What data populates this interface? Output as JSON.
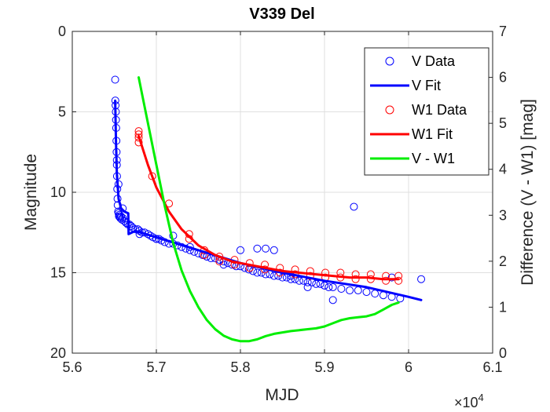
{
  "chart_data": {
    "type": "scatter",
    "title": "V339 Del",
    "xlabel": "MJD",
    "ylabel": "Magnitude",
    "y2label": "Difference (V - W1) [mag]",
    "x_exponent_label": "×10",
    "x_exponent_power": "4",
    "xlim": [
      5.6,
      6.1
    ],
    "ylim": [
      0,
      20
    ],
    "y_reversed": true,
    "y2lim": [
      0,
      7
    ],
    "xticks": [
      "5.6",
      "5.7",
      "5.8",
      "5.9",
      "6",
      "6.1"
    ],
    "yticks": [
      "0",
      "5",
      "10",
      "15",
      "20"
    ],
    "y2ticks": [
      "0",
      "1",
      "2",
      "3",
      "4",
      "5",
      "6",
      "7"
    ],
    "grid": true,
    "legend_position": "top-right",
    "series": [
      {
        "name": "V Data",
        "kind": "markers",
        "axis": "left",
        "color": "#0000ff",
        "x": [
          5.651,
          5.6512,
          5.6515,
          5.6518,
          5.652,
          5.6522,
          5.6525,
          5.6527,
          5.653,
          5.6532,
          5.6535,
          5.6538,
          5.654,
          5.6545,
          5.655,
          5.6555,
          5.656,
          5.6565,
          5.657,
          5.658,
          5.659,
          5.66,
          5.662,
          5.664,
          5.666,
          5.668,
          5.67,
          5.672,
          5.675,
          5.678,
          5.68,
          5.683,
          5.686,
          5.69,
          5.693,
          5.696,
          5.7,
          5.703,
          5.706,
          5.71,
          5.715,
          5.72,
          5.725,
          5.73,
          5.735,
          5.74,
          5.745,
          5.75,
          5.755,
          5.76,
          5.765,
          5.77,
          5.775,
          5.78,
          5.785,
          5.79,
          5.795,
          5.8,
          5.805,
          5.81,
          5.815,
          5.82,
          5.825,
          5.83,
          5.835,
          5.84,
          5.845,
          5.85,
          5.855,
          5.86,
          5.865,
          5.87,
          5.875,
          5.88,
          5.885,
          5.89,
          5.895,
          5.9,
          5.905,
          5.91,
          5.92,
          5.93,
          5.94,
          5.95,
          5.96,
          5.97,
          5.98,
          5.99,
          5.653,
          5.655,
          5.66,
          5.68,
          5.7,
          5.72,
          5.74,
          5.76,
          5.78,
          5.8,
          5.82,
          5.83,
          5.84,
          5.86,
          5.88,
          5.9,
          5.91,
          5.935,
          5.98,
          6.015
        ],
        "y": [
          3.0,
          4.3,
          4.6,
          5.0,
          5.5,
          6.0,
          6.8,
          7.5,
          8.3,
          9.0,
          9.8,
          10.4,
          10.8,
          11.2,
          11.3,
          11.5,
          11.4,
          11.5,
          11.6,
          11.5,
          11.7,
          11.6,
          11.8,
          11.9,
          12.0,
          12.0,
          12.1,
          12.2,
          12.3,
          12.3,
          12.4,
          12.5,
          12.5,
          12.6,
          12.7,
          12.8,
          12.9,
          12.9,
          13.0,
          13.1,
          13.2,
          13.2,
          13.3,
          13.4,
          13.5,
          13.6,
          13.7,
          13.8,
          13.9,
          14.0,
          14.1,
          14.1,
          14.2,
          14.3,
          14.4,
          14.5,
          14.6,
          14.6,
          14.7,
          14.8,
          14.9,
          15.0,
          15.0,
          15.1,
          15.1,
          15.2,
          15.2,
          15.3,
          15.3,
          15.4,
          15.4,
          15.5,
          15.5,
          15.6,
          15.6,
          15.7,
          15.7,
          15.8,
          15.9,
          15.9,
          16.0,
          16.1,
          16.1,
          16.2,
          16.3,
          16.4,
          16.5,
          16.6,
          8.0,
          9.5,
          11.0,
          12.6,
          12.9,
          12.7,
          13.4,
          14.0,
          14.5,
          13.6,
          13.5,
          13.5,
          13.6,
          15.2,
          15.9,
          15.8,
          16.7,
          10.9,
          15.3,
          15.4
        ]
      },
      {
        "name": "V Fit",
        "kind": "line",
        "axis": "left",
        "color": "#0000ff",
        "x": [
          5.651,
          5.652,
          5.653,
          5.655,
          5.658,
          5.662,
          5.6665,
          5.667,
          5.675,
          5.7,
          5.75,
          5.8,
          5.85,
          5.9,
          5.95,
          6.0,
          6.015
        ],
        "y": [
          4.3,
          6.8,
          8.8,
          10.4,
          11.0,
          11.2,
          11.3,
          12.6,
          12.4,
          12.8,
          13.6,
          14.4,
          15.0,
          15.5,
          15.9,
          16.5,
          16.7
        ]
      },
      {
        "name": "W1 Data",
        "kind": "markers",
        "axis": "left",
        "color": "#ff0000",
        "x": [
          5.679,
          5.679,
          5.679,
          5.679,
          5.695,
          5.715,
          5.739,
          5.739,
          5.757,
          5.757,
          5.775,
          5.775,
          5.793,
          5.793,
          5.811,
          5.811,
          5.829,
          5.829,
          5.847,
          5.847,
          5.865,
          5.865,
          5.883,
          5.883,
          5.901,
          5.901,
          5.919,
          5.919,
          5.937,
          5.937,
          5.955,
          5.955,
          5.973,
          5.973,
          5.988,
          5.988
        ],
        "y": [
          6.2,
          6.4,
          6.6,
          6.9,
          9.0,
          10.7,
          12.6,
          12.9,
          13.6,
          13.9,
          14.0,
          14.3,
          14.2,
          14.5,
          14.4,
          14.7,
          14.5,
          14.8,
          14.7,
          15.0,
          14.8,
          15.1,
          14.9,
          15.2,
          15.0,
          15.3,
          15.0,
          15.3,
          15.1,
          15.4,
          15.1,
          15.4,
          15.2,
          15.5,
          15.2,
          15.5
        ]
      },
      {
        "name": "W1 Fit",
        "kind": "line",
        "axis": "left",
        "color": "#ff0000",
        "x": [
          5.679,
          5.69,
          5.7,
          5.715,
          5.73,
          5.75,
          5.77,
          5.79,
          5.81,
          5.83,
          5.85,
          5.87,
          5.89,
          5.91,
          5.93,
          5.95,
          5.97,
          5.988
        ],
        "y": [
          6.5,
          8.3,
          9.7,
          11.2,
          12.3,
          13.3,
          13.9,
          14.3,
          14.5,
          14.7,
          14.9,
          15.0,
          15.1,
          15.2,
          15.3,
          15.3,
          15.4,
          15.4
        ]
      },
      {
        "name": "V - W1",
        "kind": "line",
        "axis": "right",
        "color": "#00ee00",
        "x": [
          5.679,
          5.69,
          5.7,
          5.71,
          5.72,
          5.73,
          5.74,
          5.75,
          5.76,
          5.77,
          5.78,
          5.79,
          5.8,
          5.81,
          5.82,
          5.83,
          5.84,
          5.85,
          5.86,
          5.87,
          5.88,
          5.89,
          5.9,
          5.91,
          5.92,
          5.93,
          5.94,
          5.95,
          5.96,
          5.97,
          5.98,
          5.988
        ],
        "y": [
          6.0,
          5.0,
          4.1,
          3.2,
          2.4,
          1.8,
          1.35,
          1.0,
          0.72,
          0.52,
          0.38,
          0.3,
          0.26,
          0.26,
          0.3,
          0.37,
          0.42,
          0.45,
          0.48,
          0.5,
          0.52,
          0.54,
          0.58,
          0.65,
          0.72,
          0.76,
          0.78,
          0.8,
          0.85,
          0.95,
          1.05,
          1.1
        ]
      }
    ]
  }
}
